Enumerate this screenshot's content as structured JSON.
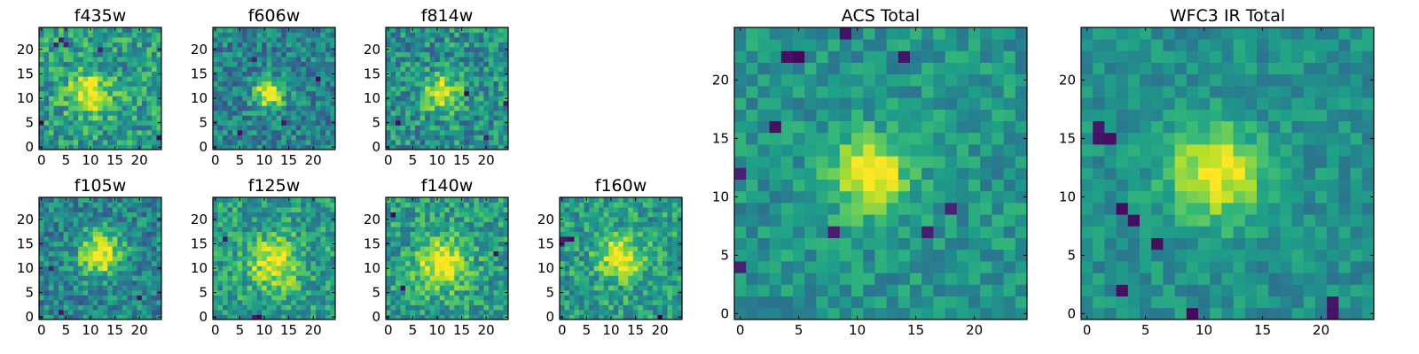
{
  "colormap": "viridis",
  "colors": {
    "background": "#ffffff",
    "axes": "#000000",
    "viridis_low": "#440154",
    "viridis_mid": "#21918c",
    "viridis_high": "#fde725"
  },
  "chart_data": [
    {
      "type": "heatmap",
      "title": "f435w",
      "grid_size": 25,
      "xlim": [
        0,
        24
      ],
      "ylim": [
        0,
        24
      ],
      "xticks": [
        0,
        5,
        10,
        15,
        20
      ],
      "yticks": [
        0,
        5,
        10,
        15,
        20
      ],
      "value_range": [
        0,
        1
      ],
      "source_center": [
        10,
        11
      ],
      "source_peak": 0.85,
      "source_sigma": 3.0,
      "noise_level": 0.22,
      "base_level": 0.55,
      "seed": 11,
      "deep_pixels": [
        [
          4,
          22
        ],
        [
          3,
          21
        ],
        [
          5,
          21
        ],
        [
          12,
          20
        ],
        [
          24,
          2
        ],
        [
          0,
          5
        ]
      ]
    },
    {
      "type": "heatmap",
      "title": "f606w",
      "grid_size": 25,
      "xlim": [
        0,
        24
      ],
      "ylim": [
        0,
        24
      ],
      "xticks": [
        0,
        5,
        10,
        15,
        20
      ],
      "yticks": [
        0,
        5,
        10,
        15,
        20
      ],
      "value_range": [
        0,
        1
      ],
      "source_center": [
        11,
        11
      ],
      "source_peak": 0.95,
      "source_sigma": 2.0,
      "noise_level": 0.2,
      "base_level": 0.45,
      "seed": 23,
      "deep_pixels": [
        [
          8,
          18
        ],
        [
          14,
          5
        ],
        [
          5,
          3
        ],
        [
          21,
          14
        ]
      ]
    },
    {
      "type": "heatmap",
      "title": "f814w",
      "grid_size": 25,
      "xlim": [
        0,
        24
      ],
      "ylim": [
        0,
        24
      ],
      "xticks": [
        0,
        5,
        10,
        15,
        20
      ],
      "yticks": [
        0,
        5,
        10,
        15,
        20
      ],
      "value_range": [
        0,
        1
      ],
      "source_center": [
        11,
        11
      ],
      "source_peak": 0.85,
      "source_sigma": 2.5,
      "noise_level": 0.22,
      "base_level": 0.5,
      "seed": 37,
      "deep_pixels": [
        [
          24,
          9
        ],
        [
          16,
          11
        ],
        [
          2,
          5
        ],
        [
          20,
          2
        ]
      ]
    },
    {
      "type": "heatmap",
      "title": "f105w",
      "grid_size": 25,
      "xlim": [
        0,
        24
      ],
      "ylim": [
        0,
        24
      ],
      "xticks": [
        0,
        5,
        10,
        15,
        20
      ],
      "yticks": [
        0,
        5,
        10,
        15,
        20
      ],
      "value_range": [
        0,
        1
      ],
      "source_center": [
        12,
        13
      ],
      "source_peak": 0.9,
      "source_sigma": 3.0,
      "noise_level": 0.2,
      "base_level": 0.45,
      "seed": 41,
      "deep_pixels": [
        [
          2,
          10
        ],
        [
          4,
          1
        ],
        [
          20,
          4
        ]
      ]
    },
    {
      "type": "heatmap",
      "title": "f125w",
      "grid_size": 25,
      "xlim": [
        0,
        24
      ],
      "ylim": [
        0,
        24
      ],
      "xticks": [
        0,
        5,
        10,
        15,
        20
      ],
      "yticks": [
        0,
        5,
        10,
        15,
        20
      ],
      "value_range": [
        0,
        1
      ],
      "source_center": [
        12,
        11
      ],
      "source_peak": 0.85,
      "source_sigma": 3.5,
      "noise_level": 0.2,
      "base_level": 0.55,
      "seed": 53,
      "deep_pixels": [
        [
          8,
          0
        ],
        [
          9,
          0
        ],
        [
          2,
          16
        ]
      ]
    },
    {
      "type": "heatmap",
      "title": "f140w",
      "grid_size": 25,
      "xlim": [
        0,
        24
      ],
      "ylim": [
        0,
        24
      ],
      "xticks": [
        0,
        5,
        10,
        15,
        20
      ],
      "yticks": [
        0,
        5,
        10,
        15,
        20
      ],
      "value_range": [
        0,
        1
      ],
      "source_center": [
        11,
        11
      ],
      "source_peak": 0.9,
      "source_sigma": 3.5,
      "noise_level": 0.2,
      "base_level": 0.55,
      "seed": 67,
      "deep_pixels": [
        [
          1,
          21
        ],
        [
          3,
          6
        ],
        [
          22,
          13
        ]
      ]
    },
    {
      "type": "heatmap",
      "title": "f160w",
      "grid_size": 25,
      "xlim": [
        0,
        24
      ],
      "ylim": [
        0,
        24
      ],
      "xticks": [
        0,
        5,
        10,
        15,
        20
      ],
      "yticks": [
        0,
        5,
        10,
        15,
        20
      ],
      "value_range": [
        0,
        1
      ],
      "source_center": [
        12,
        12
      ],
      "source_peak": 0.9,
      "source_sigma": 3.0,
      "noise_level": 0.2,
      "base_level": 0.55,
      "seed": 79,
      "deep_pixels": [
        [
          0,
          16
        ],
        [
          1,
          16
        ],
        [
          2,
          16
        ],
        [
          0,
          15
        ],
        [
          20,
          0
        ]
      ]
    },
    {
      "type": "heatmap",
      "title": "ACS Total",
      "grid_size": 25,
      "xlim": [
        0,
        24
      ],
      "ylim": [
        0,
        24
      ],
      "xticks": [
        0,
        5,
        10,
        15,
        20
      ],
      "yticks": [
        0,
        5,
        10,
        15,
        20
      ],
      "value_range": [
        0,
        1
      ],
      "source_center": [
        11,
        12
      ],
      "source_peak": 0.9,
      "source_sigma": 2.2,
      "noise_level": 0.14,
      "base_level": 0.52,
      "seed": 97,
      "deep_pixels": [
        [
          4,
          22
        ],
        [
          5,
          22
        ],
        [
          14,
          22
        ],
        [
          0,
          12
        ],
        [
          18,
          9
        ],
        [
          16,
          7
        ],
        [
          8,
          7
        ],
        [
          0,
          4
        ],
        [
          9,
          24
        ],
        [
          3,
          16
        ]
      ]
    },
    {
      "type": "heatmap",
      "title": "WFC3 IR Total",
      "grid_size": 25,
      "xlim": [
        0,
        24
      ],
      "ylim": [
        0,
        24
      ],
      "xticks": [
        0,
        5,
        10,
        15,
        20
      ],
      "yticks": [
        0,
        5,
        10,
        15,
        20
      ],
      "value_range": [
        0,
        1
      ],
      "source_center": [
        11,
        12
      ],
      "source_peak": 0.85,
      "source_sigma": 2.8,
      "noise_level": 0.12,
      "base_level": 0.5,
      "seed": 113,
      "deep_pixels": [
        [
          1,
          15
        ],
        [
          2,
          15
        ],
        [
          1,
          16
        ],
        [
          3,
          9
        ],
        [
          4,
          8
        ],
        [
          6,
          6
        ],
        [
          21,
          1
        ],
        [
          21,
          0
        ],
        [
          3,
          2
        ],
        [
          9,
          0
        ]
      ]
    }
  ]
}
